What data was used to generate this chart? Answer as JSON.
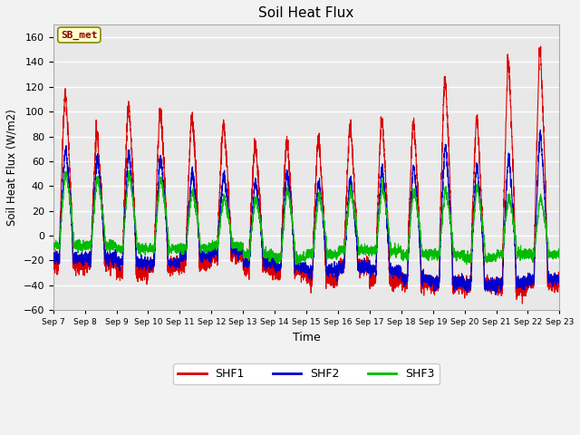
{
  "title": "Soil Heat Flux",
  "xlabel": "Time",
  "ylabel": "Soil Heat Flux (W/m2)",
  "ylim": [
    -60,
    170
  ],
  "yticks": [
    -60,
    -40,
    -20,
    0,
    20,
    40,
    60,
    80,
    100,
    120,
    140,
    160
  ],
  "line_colors": {
    "SHF1": "#dd0000",
    "SHF2": "#0000cc",
    "SHF3": "#00bb00"
  },
  "legend_label": "SB_met",
  "legend_box_color": "#ffffcc",
  "legend_box_edge": "#888800",
  "plot_bg": "#e8e8e8",
  "fig_bg": "#f2f2f2",
  "grid_color": "#ffffff",
  "n_days": 16,
  "start_day": 7,
  "ppd": 288,
  "shf1_peaks": [
    113,
    80,
    104,
    100,
    93,
    88,
    73,
    75,
    76,
    86,
    92,
    90,
    126,
    93,
    138,
    147
  ],
  "shf2_peaks": [
    68,
    60,
    64,
    62,
    50,
    48,
    42,
    50,
    42,
    43,
    53,
    54,
    71,
    54,
    62,
    80
  ],
  "shf3_peaks": [
    50,
    45,
    48,
    45,
    35,
    30,
    30,
    37,
    32,
    35,
    38,
    35,
    36,
    38,
    32,
    30
  ],
  "shf1_night": [
    -23,
    -22,
    -30,
    -25,
    -22,
    -15,
    -25,
    -28,
    -35,
    -25,
    -35,
    -38,
    -40,
    -40,
    -42,
    -38
  ],
  "shf2_night": [
    -18,
    -18,
    -22,
    -22,
    -16,
    -12,
    -22,
    -25,
    -28,
    -25,
    -28,
    -35,
    -37,
    -40,
    -38,
    -35
  ],
  "shf3_night": [
    -8,
    -8,
    -10,
    -10,
    -10,
    -8,
    -15,
    -18,
    -15,
    -12,
    -12,
    -15,
    -15,
    -18,
    -15,
    -15
  ]
}
